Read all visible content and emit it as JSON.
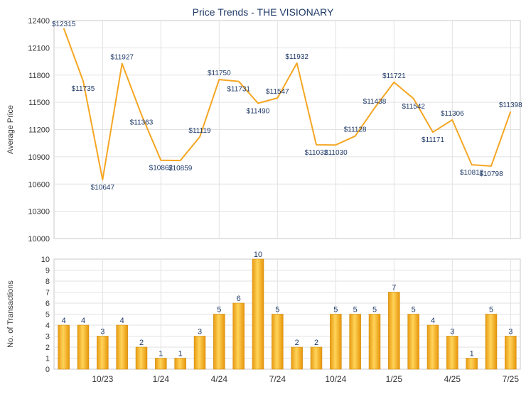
{
  "chart_data": [
    {
      "type": "line",
      "title": "Price Trends - THE VISIONARY",
      "ylabel": "Average Price",
      "ylim": [
        10000,
        12400
      ],
      "yticks": [
        10000,
        10300,
        10600,
        10900,
        11200,
        11500,
        11800,
        12100,
        12400
      ],
      "series": [
        {
          "values": [
            12315,
            11735,
            10647,
            11927,
            11363,
            10862,
            10859,
            11119,
            11750,
            11731,
            11490,
            11547,
            11932,
            11032,
            11030,
            11128,
            11438,
            11721,
            11542,
            11171,
            11306,
            10812,
            10798,
            11398
          ],
          "labels": [
            "$12315",
            "$11735",
            "$10647",
            "$11927",
            "$11363",
            "$10862",
            "$10859",
            "$11119",
            "$11750",
            "$11731",
            "$11490",
            "$11547",
            "$11932",
            "$11032",
            "$11030",
            "$11128",
            "$11438",
            "$11721",
            "$11542",
            "$11171",
            "$11306",
            "$10812",
            "$10798",
            "$11398"
          ]
        }
      ],
      "line_color": "#f5a623",
      "grid": true
    },
    {
      "type": "bar",
      "ylabel": "No. of Transactions",
      "ylim": [
        0,
        10
      ],
      "yticks": [
        0,
        1,
        2,
        3,
        4,
        5,
        6,
        7,
        8,
        9,
        10
      ],
      "values": [
        4,
        4,
        3,
        4,
        2,
        1,
        1,
        3,
        5,
        6,
        10,
        5,
        2,
        2,
        5,
        5,
        5,
        7,
        5,
        4,
        3,
        1,
        5,
        3
      ],
      "bar_color": "#f5b324",
      "grid": true
    }
  ],
  "x_axis": {
    "tick_labels": [
      {
        "index": 2,
        "label": "10/23"
      },
      {
        "index": 5,
        "label": "1/24"
      },
      {
        "index": 8,
        "label": "4/24"
      },
      {
        "index": 11,
        "label": "7/24"
      },
      {
        "index": 14,
        "label": "10/24"
      },
      {
        "index": 17,
        "label": "1/25"
      },
      {
        "index": 20,
        "label": "4/25"
      },
      {
        "index": 23,
        "label": "7/25"
      }
    ]
  }
}
